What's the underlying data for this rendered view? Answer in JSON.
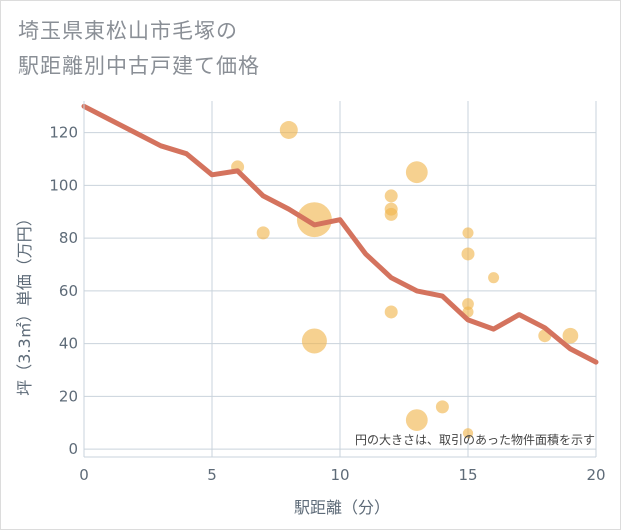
{
  "title_lines": [
    "埼玉県東松山市毛塚の",
    "駅距離別中古戸建て価格"
  ],
  "note": "円の大きさは、取引のあった物件面積を示す",
  "colors": {
    "line": "#d4735e",
    "bubble": "#f0b44c",
    "grid": "#c9d3dc",
    "text": "#5e6b78",
    "title": "#8a8f96"
  },
  "chart_data": {
    "type": "scatter",
    "title": "埼玉県東松山市毛塚の 駅距離別中古戸建て価格",
    "xlabel": "駅距離（分）",
    "ylabel": "坪（3.3㎡）単価（万円）",
    "xlim": [
      0,
      20
    ],
    "ylim": [
      -3,
      132
    ],
    "xticks": [
      0,
      5,
      10,
      15,
      20
    ],
    "yticks": [
      0,
      20,
      40,
      60,
      80,
      100,
      120
    ],
    "grid": true,
    "bubbles": [
      {
        "x": 6,
        "y": 107,
        "size": 1
      },
      {
        "x": 7,
        "y": 82,
        "size": 1
      },
      {
        "x": 8,
        "y": 121,
        "size": 2
      },
      {
        "x": 9,
        "y": 87,
        "size": 8
      },
      {
        "x": 9,
        "y": 41,
        "size": 4
      },
      {
        "x": 12,
        "y": 96,
        "size": 1
      },
      {
        "x": 12,
        "y": 91,
        "size": 1
      },
      {
        "x": 12,
        "y": 89,
        "size": 1
      },
      {
        "x": 12,
        "y": 52,
        "size": 1
      },
      {
        "x": 13,
        "y": 105,
        "size": 3
      },
      {
        "x": 13,
        "y": 11,
        "size": 3
      },
      {
        "x": 14,
        "y": 16,
        "size": 1
      },
      {
        "x": 15,
        "y": 82,
        "size": 0.7
      },
      {
        "x": 15,
        "y": 74,
        "size": 1
      },
      {
        "x": 15,
        "y": 55,
        "size": 0.8
      },
      {
        "x": 15,
        "y": 52,
        "size": 0.7
      },
      {
        "x": 15,
        "y": 6,
        "size": 0.6
      },
      {
        "x": 16,
        "y": 65,
        "size": 0.7
      },
      {
        "x": 18,
        "y": 43,
        "size": 1
      },
      {
        "x": 19,
        "y": 43,
        "size": 1.5
      }
    ],
    "line": {
      "x": [
        0,
        1,
        2,
        3,
        4,
        5,
        6,
        7,
        8,
        9,
        10,
        11,
        12,
        13,
        14,
        15,
        16,
        17,
        18,
        19,
        20
      ],
      "y": [
        130,
        125,
        120,
        115,
        112,
        104,
        105.5,
        96,
        91,
        85,
        87,
        74,
        65,
        60,
        58,
        49,
        45.5,
        51,
        46,
        38,
        33
      ]
    }
  }
}
